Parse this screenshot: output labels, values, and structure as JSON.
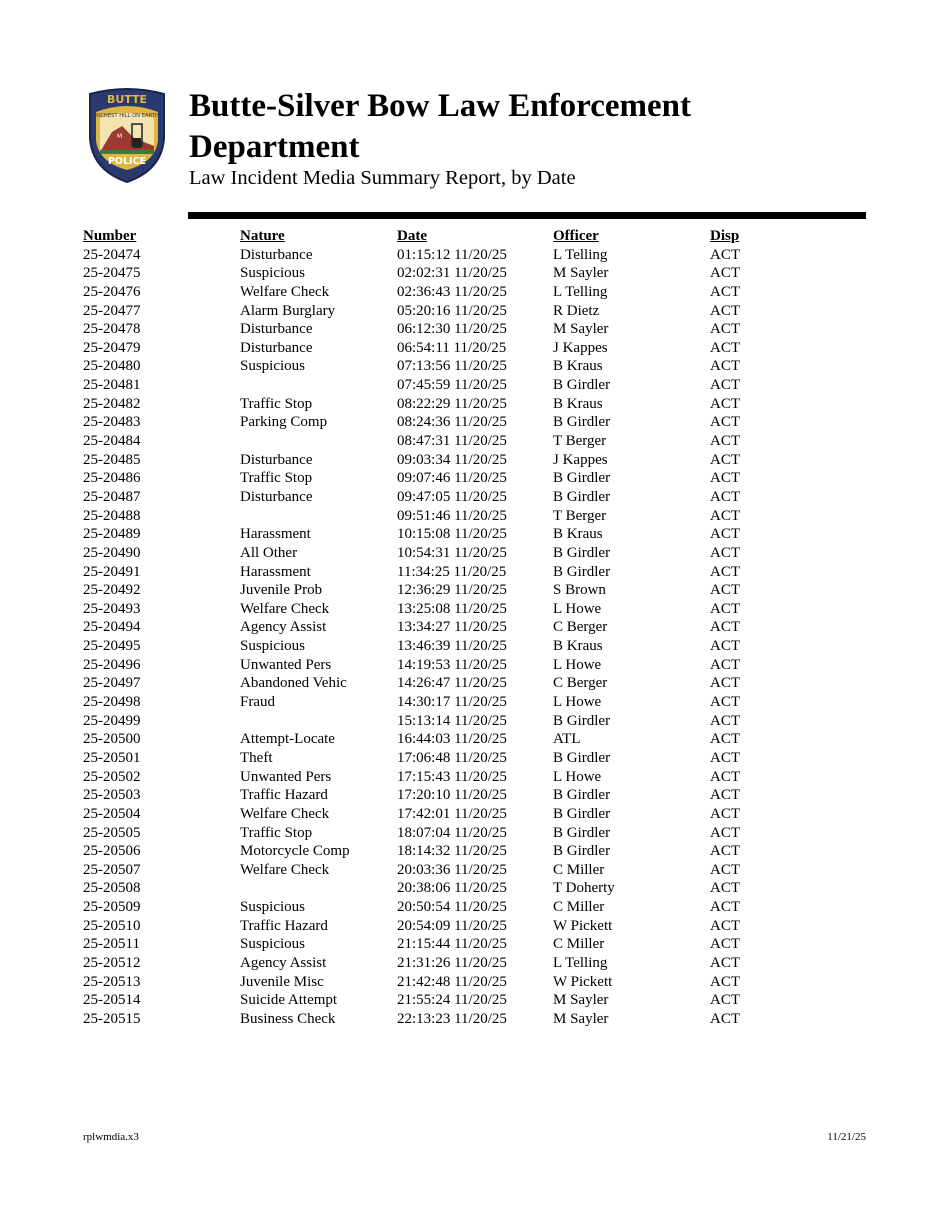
{
  "logo": {
    "top_text": "BUTTE",
    "banner_text": "RICHEST HILL ON EARTH",
    "bottom_text": "POLICE",
    "colors": {
      "navy": "#2a3a6e",
      "gold": "#e0b640",
      "red": "#9b3a32",
      "green": "#3f7a3a"
    }
  },
  "header": {
    "title": "Butte-Silver Bow Law Enforcement Department",
    "subtitle": "Law Incident Media Summary Report, by Date"
  },
  "table": {
    "columns": [
      "Number",
      "Nature",
      "Date",
      "Officer",
      "Disp"
    ],
    "rows": [
      [
        "25-20474",
        "Disturbance",
        "01:15:12 11/20/25",
        "L Telling",
        "ACT"
      ],
      [
        "25-20475",
        "Suspicious",
        "02:02:31 11/20/25",
        "M Sayler",
        "ACT"
      ],
      [
        "25-20476",
        "Welfare Check",
        "02:36:43 11/20/25",
        "L Telling",
        "ACT"
      ],
      [
        "25-20477",
        "Alarm Burglary",
        "05:20:16 11/20/25",
        "R Dietz",
        "ACT"
      ],
      [
        "25-20478",
        "Disturbance",
        "06:12:30 11/20/25",
        "M Sayler",
        "ACT"
      ],
      [
        "25-20479",
        "Disturbance",
        "06:54:11 11/20/25",
        "J Kappes",
        "ACT"
      ],
      [
        "25-20480",
        "Suspicious",
        "07:13:56 11/20/25",
        "B Kraus",
        "ACT"
      ],
      [
        "25-20481",
        "",
        "07:45:59 11/20/25",
        "B Girdler",
        "ACT"
      ],
      [
        "25-20482",
        "Traffic Stop",
        "08:22:29 11/20/25",
        "B Kraus",
        "ACT"
      ],
      [
        "25-20483",
        "Parking Comp",
        "08:24:36 11/20/25",
        "B Girdler",
        "ACT"
      ],
      [
        "25-20484",
        "",
        "08:47:31 11/20/25",
        "T Berger",
        "ACT"
      ],
      [
        "25-20485",
        "Disturbance",
        "09:03:34 11/20/25",
        "J Kappes",
        "ACT"
      ],
      [
        "25-20486",
        "Traffic Stop",
        "09:07:46 11/20/25",
        "B Girdler",
        "ACT"
      ],
      [
        "25-20487",
        "Disturbance",
        "09:47:05 11/20/25",
        "B Girdler",
        "ACT"
      ],
      [
        "25-20488",
        "",
        "09:51:46 11/20/25",
        "T Berger",
        "ACT"
      ],
      [
        "25-20489",
        "Harassment",
        "10:15:08 11/20/25",
        "B Kraus",
        "ACT"
      ],
      [
        "25-20490",
        "All Other",
        "10:54:31 11/20/25",
        "B Girdler",
        "ACT"
      ],
      [
        "25-20491",
        "Harassment",
        "11:34:25 11/20/25",
        "B Girdler",
        "ACT"
      ],
      [
        "25-20492",
        "Juvenile Prob",
        "12:36:29 11/20/25",
        "S Brown",
        "ACT"
      ],
      [
        "25-20493",
        "Welfare Check",
        "13:25:08 11/20/25",
        "L Howe",
        "ACT"
      ],
      [
        "25-20494",
        "Agency Assist",
        "13:34:27 11/20/25",
        "C Berger",
        "ACT"
      ],
      [
        "25-20495",
        "Suspicious",
        "13:46:39 11/20/25",
        "B Kraus",
        "ACT"
      ],
      [
        "25-20496",
        "Unwanted Pers",
        "14:19:53 11/20/25",
        "L Howe",
        "ACT"
      ],
      [
        "25-20497",
        "Abandoned Vehic",
        "14:26:47 11/20/25",
        "C Berger",
        "ACT"
      ],
      [
        "25-20498",
        "Fraud",
        "14:30:17 11/20/25",
        "L Howe",
        "ACT"
      ],
      [
        "25-20499",
        "",
        "15:13:14 11/20/25",
        "B Girdler",
        "ACT"
      ],
      [
        "25-20500",
        "Attempt-Locate",
        "16:44:03 11/20/25",
        "ATL",
        "ACT"
      ],
      [
        "25-20501",
        "Theft",
        "17:06:48 11/20/25",
        "B Girdler",
        "ACT"
      ],
      [
        "25-20502",
        "Unwanted Pers",
        "17:15:43 11/20/25",
        "L Howe",
        "ACT"
      ],
      [
        "25-20503",
        "Traffic Hazard",
        "17:20:10 11/20/25",
        "B Girdler",
        "ACT"
      ],
      [
        "25-20504",
        "Welfare Check",
        "17:42:01 11/20/25",
        "B Girdler",
        "ACT"
      ],
      [
        "25-20505",
        "Traffic Stop",
        "18:07:04 11/20/25",
        "B Girdler",
        "ACT"
      ],
      [
        "25-20506",
        "Motorcycle Comp",
        "18:14:32 11/20/25",
        "B Girdler",
        "ACT"
      ],
      [
        "25-20507",
        "Welfare Check",
        "20:03:36 11/20/25",
        "C Miller",
        "ACT"
      ],
      [
        "25-20508",
        "",
        "20:38:06 11/20/25",
        "T Doherty",
        "ACT"
      ],
      [
        "25-20509",
        "Suspicious",
        "20:50:54 11/20/25",
        "C Miller",
        "ACT"
      ],
      [
        "25-20510",
        "Traffic Hazard",
        "20:54:09 11/20/25",
        "W Pickett",
        "ACT"
      ],
      [
        "25-20511",
        "Suspicious",
        "21:15:44 11/20/25",
        "C Miller",
        "ACT"
      ],
      [
        "25-20512",
        "Agency Assist",
        "21:31:26 11/20/25",
        "L Telling",
        "ACT"
      ],
      [
        "25-20513",
        "Juvenile Misc",
        "21:42:48 11/20/25",
        "W Pickett",
        "ACT"
      ],
      [
        "25-20514",
        "Suicide Attempt",
        "21:55:24 11/20/25",
        "M Sayler",
        "ACT"
      ],
      [
        "25-20515",
        "Business Check",
        "22:13:23 11/20/25",
        "M Sayler",
        "ACT"
      ]
    ]
  },
  "footer": {
    "report_code": "rplwmdia.x3",
    "print_date": "11/21/25"
  }
}
